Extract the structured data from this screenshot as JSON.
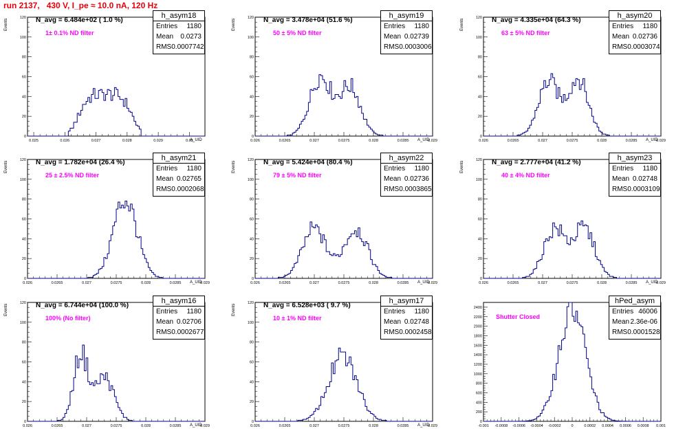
{
  "title": "run 2137,   430 V, I_pe ≈ 10.0 nA, 120 Hz",
  "colors": {
    "title": "#e8000b",
    "hist": "#00008b",
    "note": "#ff00ff"
  },
  "stats_labels": {
    "entries": "Entries",
    "mean": "Mean",
    "rms": "RMS"
  },
  "chart_data": [
    {
      "type": "histogram",
      "name": "h_asym18",
      "n_avg": "N_avg = 6.484e+02 ( 1.0 %)",
      "note": "1± 0.1% ND filter",
      "entries": "1180",
      "mean": "0.0273",
      "rms": "0.0007742",
      "ylabel": "Events",
      "xlabel": "A_UID",
      "xlim": [
        0.0248,
        0.0305
      ],
      "ylim": [
        0,
        120
      ],
      "xticks": [
        0.025,
        0.026,
        0.027,
        0.028,
        0.029,
        0.03
      ],
      "xticklabels": [
        "0.025",
        "0.026",
        "0.027",
        "0.028",
        "0.029",
        "0.03"
      ],
      "yticks": [
        0,
        20,
        40,
        60,
        80,
        100,
        120
      ],
      "shape": {
        "kind": "plateau",
        "center": 0.0273,
        "halfwidth": 0.0009,
        "peak": 42
      }
    },
    {
      "type": "histogram",
      "name": "h_asym19",
      "n_avg": "N_avg = 3.478e+04 (51.6 %)",
      "note": "50 ± 5% ND filter",
      "entries": "1180",
      "mean": "0.02739",
      "rms": "0.0003006",
      "ylabel": "Events",
      "xlabel": "A_UID",
      "xlim": [
        0.026,
        0.029
      ],
      "ylim": [
        0,
        120
      ],
      "xticks": [
        0.026,
        0.0265,
        0.027,
        0.0275,
        0.028,
        0.0285,
        0.029
      ],
      "xticklabels": [
        "0.026",
        "0.0265",
        "0.027",
        "0.0275",
        "0.028",
        "0.0285",
        "0.029"
      ],
      "yticks": [
        0,
        20,
        40,
        60,
        80,
        100,
        120
      ],
      "shape": {
        "kind": "double",
        "peaks": [
          [
            0.0271,
            60,
            0.00018
          ],
          [
            0.0276,
            50,
            0.00018
          ]
        ]
      }
    },
    {
      "type": "histogram",
      "name": "h_asym20",
      "n_avg": "N_avg = 4.335e+04 (64.3 %)",
      "note": "63 ± 5% ND filter",
      "entries": "1180",
      "mean": "0.02736",
      "rms": "0.0003074",
      "ylabel": "Events",
      "xlabel": "A_UID",
      "xlim": [
        0.026,
        0.029
      ],
      "ylim": [
        0,
        120
      ],
      "xticks": [
        0.026,
        0.0265,
        0.027,
        0.0275,
        0.028,
        0.0285,
        0.029
      ],
      "xticklabels": [
        "0.026",
        "0.0265",
        "0.027",
        "0.0275",
        "0.028",
        "0.0285",
        "0.029"
      ],
      "yticks": [
        0,
        20,
        40,
        60,
        80,
        100,
        120
      ],
      "shape": {
        "kind": "double",
        "peaks": [
          [
            0.0271,
            55,
            0.00017
          ],
          [
            0.0276,
            58,
            0.00017
          ]
        ]
      }
    },
    {
      "type": "histogram",
      "name": "h_asym21",
      "n_avg": "N_avg = 1.782e+04 (26.4 %)",
      "note": "25 ± 2.5% ND filter",
      "entries": "1180",
      "mean": "0.02765",
      "rms": "0.0002068",
      "ylabel": "Events",
      "xlabel": "A_UID",
      "xlim": [
        0.026,
        0.029
      ],
      "ylim": [
        0,
        120
      ],
      "xticks": [
        0.026,
        0.0265,
        0.027,
        0.0275,
        0.028,
        0.0285,
        0.029
      ],
      "xticklabels": [
        "0.026",
        "0.0265",
        "0.027",
        "0.0275",
        "0.028",
        "0.0285",
        "0.029"
      ],
      "yticks": [
        0,
        20,
        40,
        60,
        80,
        100,
        120
      ],
      "shape": {
        "kind": "single",
        "peaks": [
          [
            0.02765,
            80,
            0.0002
          ]
        ]
      }
    },
    {
      "type": "histogram",
      "name": "h_asym22",
      "n_avg": "N_avg = 5.424e+04 (80.4 %)",
      "note": "79 ± 5% ND filter",
      "entries": "1180",
      "mean": "0.02736",
      "rms": "0.0003865",
      "ylabel": "Events",
      "xlabel": "A_UID",
      "xlim": [
        0.026,
        0.029
      ],
      "ylim": [
        0,
        120
      ],
      "xticks": [
        0.026,
        0.0265,
        0.027,
        0.0275,
        0.028,
        0.0285,
        0.029
      ],
      "xticklabels": [
        "0.026",
        "0.0265",
        "0.027",
        "0.0275",
        "0.028",
        "0.0285",
        "0.029"
      ],
      "yticks": [
        0,
        20,
        40,
        60,
        80,
        100,
        120
      ],
      "shape": {
        "kind": "double",
        "peaks": [
          [
            0.027,
            50,
            0.0002
          ],
          [
            0.0277,
            50,
            0.0002
          ]
        ]
      }
    },
    {
      "type": "histogram",
      "name": "h_asym23",
      "n_avg": "N_avg = 2.777e+04 (41.2 %)",
      "note": "40 ± 4% ND filter",
      "entries": "1180",
      "mean": "0.02748",
      "rms": "0.0003109",
      "ylabel": "Events",
      "xlabel": "A_UID",
      "xlim": [
        0.026,
        0.029
      ],
      "ylim": [
        0,
        120
      ],
      "xticks": [
        0.026,
        0.0265,
        0.027,
        0.0275,
        0.028,
        0.0285,
        0.029
      ],
      "xticklabels": [
        "0.026",
        "0.0265",
        "0.027",
        "0.0275",
        "0.028",
        "0.0285",
        "0.029"
      ],
      "yticks": [
        0,
        20,
        40,
        60,
        80,
        100,
        120
      ],
      "shape": {
        "kind": "double",
        "peaks": [
          [
            0.0272,
            50,
            0.00018
          ],
          [
            0.0277,
            50,
            0.00018
          ]
        ]
      }
    },
    {
      "type": "histogram",
      "name": "h_asym16",
      "n_avg": "N_avg = 6.744e+04 (100.0 %)",
      "note": "100% (No filter)",
      "entries": "1180",
      "mean": "0.02706",
      "rms": "0.0002677",
      "ylabel": "Events",
      "xlabel": "A_UID",
      "xlim": [
        0.026,
        0.029
      ],
      "ylim": [
        0,
        120
      ],
      "xticks": [
        0.026,
        0.0265,
        0.027,
        0.0275,
        0.028,
        0.0285,
        0.029
      ],
      "xticklabels": [
        "0.026",
        "0.0265",
        "0.027",
        "0.0275",
        "0.028",
        "0.0285",
        "0.029"
      ],
      "yticks": [
        0,
        20,
        40,
        60,
        80,
        100,
        120
      ],
      "shape": {
        "kind": "double",
        "peaks": [
          [
            0.0269,
            68,
            0.00012
          ],
          [
            0.0273,
            45,
            0.00016
          ]
        ]
      }
    },
    {
      "type": "histogram",
      "name": "h_asym17",
      "n_avg": "N_avg = 6.528e+03 ( 9.7 %)",
      "note": "10 ± 1% ND filter",
      "entries": "1180",
      "mean": "0.02748",
      "rms": "0.0002458",
      "ylabel": "Events",
      "xlabel": "A_UID",
      "xlim": [
        0.026,
        0.029
      ],
      "ylim": [
        0,
        120
      ],
      "xticks": [
        0.026,
        0.0265,
        0.027,
        0.0275,
        0.028,
        0.0285,
        0.029
      ],
      "xticklabels": [
        "0.026",
        "0.0265",
        "0.027",
        "0.0275",
        "0.028",
        "0.0285",
        "0.029"
      ],
      "yticks": [
        0,
        20,
        40,
        60,
        80,
        100,
        120
      ],
      "shape": {
        "kind": "single",
        "peaks": [
          [
            0.02748,
            65,
            0.00024
          ]
        ]
      }
    },
    {
      "type": "histogram",
      "name": "hPed_asym",
      "n_avg": "",
      "note": "Shutter Closed",
      "entries": "46006",
      "mean": "2.36e-06",
      "rms": "0.0001528",
      "ylabel": "",
      "xlabel": "",
      "xlim": [
        -0.001,
        0.001
      ],
      "ylim": [
        0,
        2500
      ],
      "xticks": [
        -0.001,
        -0.0008,
        -0.0006,
        -0.0004,
        -0.0002,
        0,
        0.0002,
        0.0004,
        0.0006,
        0.0008,
        0.001
      ],
      "xticklabels": [
        "-0.001",
        "-0.0008",
        "-0.0006",
        "-0.0004",
        "-0.0002",
        "0",
        "0.0002",
        "0.0004",
        "0.0006",
        "0.0008",
        "0.001"
      ],
      "yticks": [
        0,
        200,
        400,
        600,
        800,
        1000,
        1200,
        1400,
        1600,
        1800,
        2000,
        2200,
        2400
      ],
      "shape": {
        "kind": "single",
        "peaks": [
          [
            0.0,
            2380,
            0.00015
          ]
        ]
      }
    }
  ]
}
